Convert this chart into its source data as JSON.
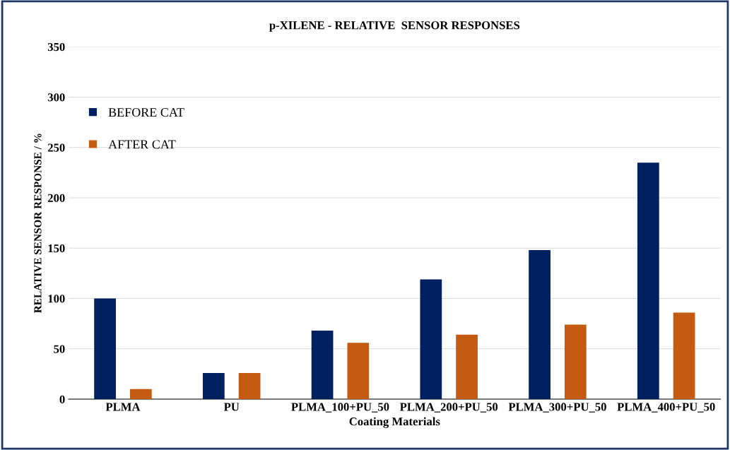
{
  "chart_data": {
    "type": "bar",
    "title": "p-XILENE - RELATIVE  SENSOR RESPONSES",
    "xlabel": "Coating Materials",
    "ylabel": "RELATIVE SENSOR RESPONSE / %",
    "categories": [
      "PLMA",
      "PU",
      "PLMA_100+PU_50",
      "PLMA_200+PU_50",
      "PLMA_300+PU_50",
      "PLMA_400+PU_50"
    ],
    "series": [
      {
        "name": "BEFORE CAT",
        "color": "#002060",
        "values": [
          100,
          26,
          68,
          119,
          148,
          235
        ]
      },
      {
        "name": "AFTER CAT",
        "color": "#c55a11",
        "values": [
          10,
          26,
          56,
          64,
          74,
          86
        ]
      }
    ],
    "ylim": [
      0,
      350
    ],
    "yticks": [
      0,
      50,
      100,
      150,
      200,
      250,
      300,
      350
    ],
    "grid": "y",
    "legend": "top left"
  }
}
